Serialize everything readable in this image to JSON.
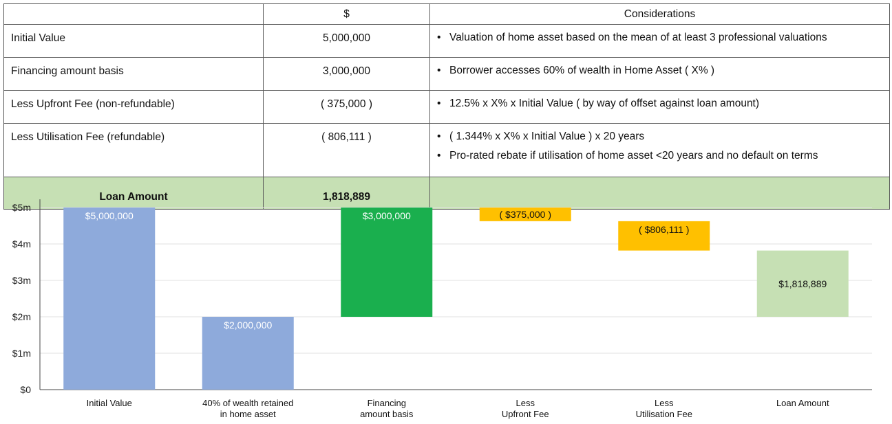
{
  "table": {
    "headers": [
      "",
      "$",
      "Considerations"
    ],
    "rows": [
      {
        "item": "Initial Value",
        "amount": "5,000,000",
        "considerations": [
          "Valuation of home asset based on the mean of at least 3 professional valuations"
        ]
      },
      {
        "item": "Financing amount basis",
        "amount": "3,000,000",
        "considerations": [
          "Borrower accesses 60% of wealth in Home Asset ( X% )"
        ]
      },
      {
        "item": "Less Upfront Fee (non-refundable)",
        "amount": "( 375,000 )",
        "considerations": [
          "12.5% x  X% x Initial Value ( by way of offset against loan amount)"
        ]
      },
      {
        "item": "Less Utilisation Fee (refundable)",
        "amount": "( 806,111 )",
        "considerations": [
          "( 1.344% x X% x Initial Value ) x 20 years",
          "Pro-rated rebate if utilisation of home asset <20 years and no default on terms"
        ]
      }
    ],
    "total": {
      "item": "Loan Amount",
      "amount": "1,818,889",
      "considerations": ""
    },
    "total_row_color": "#c6e0b4"
  },
  "chart_data": {
    "type": "bar",
    "subtype": "waterfall",
    "categories": [
      [
        "Initial Value"
      ],
      [
        "40% of wealth retained",
        "in home asset"
      ],
      [
        "Financing",
        "amount basis"
      ],
      [
        "Less",
        "Upfront Fee"
      ],
      [
        "Less",
        "Utilisation Fee"
      ],
      [
        "Loan Amount"
      ]
    ],
    "bars": [
      {
        "bottom": 0,
        "top": 5000000,
        "label": "$5,000,000",
        "color": "#8eaadb",
        "label_color": "#ffffff",
        "label_pos": "top"
      },
      {
        "bottom": 0,
        "top": 2000000,
        "label": "$2,000,000",
        "color": "#8eaadb",
        "label_color": "#ffffff",
        "label_pos": "top"
      },
      {
        "bottom": 2000000,
        "top": 5000000,
        "label": "$3,000,000",
        "color": "#1aaf4e",
        "label_color": "#ffffff",
        "label_pos": "top"
      },
      {
        "bottom": 4625000,
        "top": 5000000,
        "label": "( $375,000 )",
        "color": "#ffc000",
        "label_color": "#111111",
        "label_pos": "center"
      },
      {
        "bottom": 3818889,
        "top": 4625000,
        "label": "( $806,111 )",
        "color": "#ffc000",
        "label_color": "#111111",
        "label_pos": "top"
      },
      {
        "bottom": 2000000,
        "top": 3818889,
        "label": "$1,818,889",
        "color": "#c6e0b4",
        "label_color": "#111111",
        "label_pos": "center"
      }
    ],
    "yticks": [
      {
        "value": 0,
        "label": "$0"
      },
      {
        "value": 1000000,
        "label": "$1m"
      },
      {
        "value": 2000000,
        "label": "$2m"
      },
      {
        "value": 3000000,
        "label": "$3m"
      },
      {
        "value": 4000000,
        "label": "$4m"
      },
      {
        "value": 5000000,
        "label": "$5m"
      }
    ],
    "ylim": [
      0,
      5000000
    ],
    "grid": true,
    "legend": "none",
    "title": "",
    "xlabel": "",
    "ylabel": ""
  }
}
